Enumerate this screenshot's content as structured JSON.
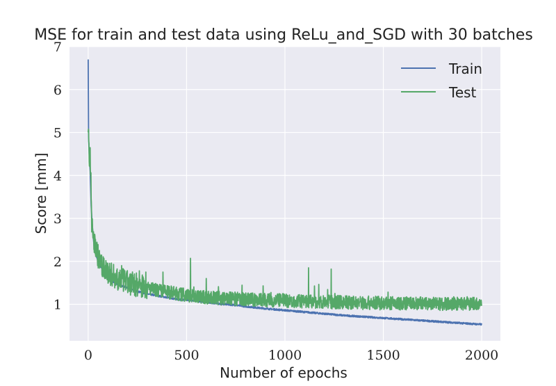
{
  "chart_data": {
    "type": "line",
    "title": "MSE for train and test data using ReLu_and_SGD with 30 batches",
    "xlabel": "Number of epochs",
    "ylabel": "Score [mm]",
    "xlim": [
      -95,
      2095
    ],
    "ylim": [
      0.15,
      7.0
    ],
    "xticks": [
      0,
      500,
      1000,
      1500,
      2000
    ],
    "yticks": [
      1,
      2,
      3,
      4,
      5,
      6,
      7
    ],
    "grid": true,
    "legend_position": "top-right",
    "colors": {
      "background": "#eaeaf2",
      "grid": "#ffffff",
      "train": "#4c72b0",
      "test": "#55a868"
    },
    "series": [
      {
        "name": "Train",
        "color": "#4c72b0",
        "x": [
          0,
          2,
          5,
          10,
          15,
          20,
          25,
          30,
          40,
          50,
          60,
          80,
          100,
          130,
          160,
          200,
          250,
          300,
          350,
          400,
          450,
          500,
          550,
          600,
          650,
          700,
          750,
          800,
          900,
          1000,
          1100,
          1200,
          1300,
          1400,
          1500,
          1600,
          1700,
          1800,
          1900,
          2000
        ],
        "values": [
          6.7,
          4.9,
          4.5,
          4.1,
          3.3,
          2.9,
          2.6,
          2.35,
          2.15,
          2.0,
          1.9,
          1.75,
          1.62,
          1.52,
          1.45,
          1.38,
          1.3,
          1.24,
          1.2,
          1.16,
          1.12,
          1.1,
          1.08,
          1.05,
          1.02,
          1.0,
          0.98,
          0.95,
          0.9,
          0.86,
          0.82,
          0.78,
          0.74,
          0.71,
          0.68,
          0.65,
          0.62,
          0.59,
          0.56,
          0.53
        ]
      },
      {
        "name": "Test",
        "color": "#55a868",
        "x": [
          0,
          3,
          6,
          10,
          14,
          18,
          22,
          26,
          30,
          40,
          50,
          60,
          70,
          80,
          100,
          120,
          150,
          180,
          200,
          250,
          300,
          350,
          400,
          450,
          500,
          520,
          550,
          600,
          650,
          700,
          800,
          900,
          1000,
          1100,
          1200,
          1300,
          1400,
          1500,
          1600,
          1700,
          1800,
          1900,
          2000
        ],
        "values": [
          5.0,
          4.7,
          4.3,
          4.5,
          3.8,
          2.9,
          2.7,
          2.5,
          2.4,
          2.3,
          2.1,
          1.95,
          1.85,
          1.8,
          1.72,
          1.66,
          1.58,
          1.52,
          1.48,
          1.42,
          1.36,
          1.31,
          1.27,
          1.23,
          1.2,
          1.18,
          1.17,
          1.15,
          1.13,
          1.12,
          1.1,
          1.08,
          1.07,
          1.05,
          1.04,
          1.03,
          1.02,
          1.01,
          1.0,
          1.0,
          1.0,
          1.0,
          1.0
        ],
        "spikes": [
          {
            "x": 520,
            "y": 2.07
          },
          {
            "x": 1120,
            "y": 1.85
          },
          {
            "x": 1235,
            "y": 1.82
          },
          {
            "x": 600,
            "y": 1.6
          },
          {
            "x": 380,
            "y": 1.75
          },
          {
            "x": 260,
            "y": 1.78
          },
          {
            "x": 170,
            "y": 1.9
          }
        ]
      }
    ]
  }
}
